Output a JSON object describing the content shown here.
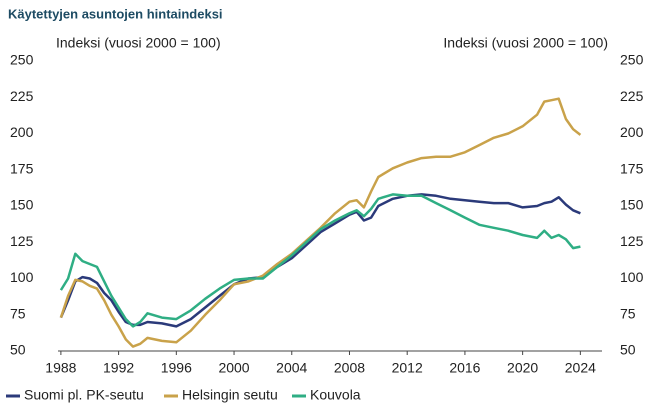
{
  "chart_data": {
    "type": "line",
    "title": "Käytettyjen asuntojen hintaindeksi",
    "y_label": "Indeksi (vuosi 2000 = 100)",
    "y2_label": "Indeksi (vuosi 2000 = 100)",
    "x": [
      1988,
      1988.5,
      1989,
      1989.5,
      1990,
      1990.5,
      1991,
      1991.5,
      1992,
      1992.5,
      1993,
      1993.5,
      1994,
      1995,
      1996,
      1997,
      1998,
      1999,
      2000,
      2001,
      2002,
      2003,
      2004,
      2005,
      2006,
      2007,
      2008,
      2008.5,
      2009,
      2009.5,
      2010,
      2011,
      2012,
      2013,
      2014,
      2015,
      2016,
      2017,
      2018,
      2019,
      2020,
      2021,
      2021.5,
      2022,
      2022.5,
      2023,
      2023.5,
      2024
    ],
    "series": [
      {
        "name": "Suomi pl. PK-seutu",
        "color": "#2b3a7a",
        "values": [
          73,
          85,
          98,
          101,
          100,
          97,
          90,
          85,
          77,
          70,
          68,
          68,
          70,
          69,
          67,
          72,
          80,
          88,
          96,
          100,
          101,
          108,
          114,
          123,
          132,
          138,
          144,
          146,
          140,
          142,
          150,
          155,
          157,
          158,
          157,
          155,
          154,
          153,
          152,
          152,
          149,
          150,
          152,
          153,
          156,
          151,
          147,
          145
        ]
      },
      {
        "name": "Helsingin seutu",
        "color": "#c9a24a",
        "values": [
          73,
          88,
          99,
          98,
          95,
          93,
          85,
          75,
          67,
          58,
          53,
          55,
          59,
          57,
          56,
          64,
          75,
          85,
          96,
          98,
          102,
          110,
          117,
          126,
          135,
          145,
          153,
          154,
          149,
          160,
          170,
          176,
          180,
          183,
          184,
          184,
          187,
          192,
          197,
          200,
          205,
          213,
          222,
          223,
          224,
          210,
          203,
          199
        ]
      },
      {
        "name": "Kouvola",
        "color": "#2fae84",
        "values": [
          92,
          100,
          117,
          112,
          110,
          108,
          98,
          88,
          80,
          72,
          67,
          70,
          76,
          73,
          72,
          78,
          86,
          93,
          99,
          100,
          100,
          108,
          116,
          125,
          134,
          140,
          145,
          147,
          143,
          148,
          155,
          158,
          157,
          157,
          152,
          147,
          142,
          137,
          135,
          133,
          130,
          128,
          133,
          128,
          130,
          127,
          121,
          122
        ]
      }
    ],
    "xlim": [
      1987.8,
      2025.5
    ],
    "xticks": [
      1988,
      1992,
      1996,
      2000,
      2004,
      2008,
      2012,
      2016,
      2020,
      2024
    ],
    "ylim": [
      50,
      250
    ],
    "yticks": [
      50,
      75,
      100,
      125,
      150,
      175,
      200,
      225,
      250
    ],
    "y2lim": [
      50,
      250
    ],
    "y2ticks": [
      50,
      75,
      100,
      125,
      150,
      175,
      200,
      225,
      250
    ],
    "legend": "bottom"
  }
}
